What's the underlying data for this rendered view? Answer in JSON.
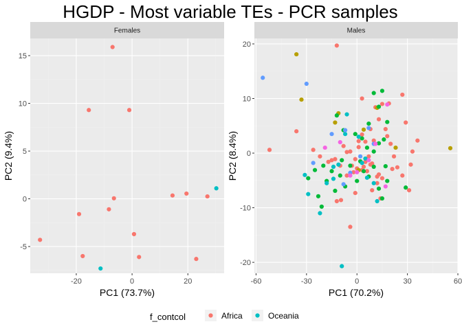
{
  "title": "HGDP - Most variable TEs - PCR samples",
  "colors": {
    "panel_bg": "#ebebeb",
    "strip_bg": "#d9d9d9",
    "legend_key_bg": "#f2f2f2"
  },
  "legend": {
    "title": "f_contcol",
    "position": "bottom",
    "entries": [
      {
        "label": "Africa",
        "color": "#F8766D"
      },
      {
        "label": "Oceania",
        "color": "#00BFC4"
      }
    ]
  },
  "chart_data": [
    {
      "type": "scatter",
      "facet": "Females",
      "xlabel": "PC1 (73.7%)",
      "ylabel": "PC2 (9.4%)",
      "xlim": [
        -36.5,
        33
      ],
      "ylim": [
        -7.8,
        16.8
      ],
      "xticks": [
        -20,
        0,
        20
      ],
      "yticks": [
        -5,
        0,
        5,
        10,
        15
      ],
      "grid": true,
      "series": [
        {
          "name": "Africa",
          "color": "#F8766D",
          "points": [
            [
              -7,
              15.9
            ],
            [
              -1,
              9.3
            ],
            [
              -15.5,
              9.3
            ],
            [
              -6.5,
              0.05
            ],
            [
              -8.3,
              -1.1
            ],
            [
              -19,
              -1.6
            ],
            [
              -33,
              -4.3
            ],
            [
              -17.7,
              -6
            ],
            [
              0.7,
              -3.7
            ],
            [
              2.5,
              -6.1
            ],
            [
              14.5,
              0.35
            ],
            [
              19.5,
              0.55
            ],
            [
              27,
              0.25
            ],
            [
              23,
              -6.3
            ]
          ]
        },
        {
          "name": "Oceania",
          "color": "#00BFC4",
          "points": [
            [
              30.2,
              1.1
            ],
            [
              -11.3,
              -7.3
            ]
          ]
        }
      ]
    },
    {
      "type": "scatter",
      "facet": "Males",
      "xlabel": "PC1 (70.2%)",
      "ylabel": "PC2 (8.4%)",
      "xlim": [
        -61,
        60
      ],
      "ylim": [
        -22,
        21
      ],
      "xticks": [
        -60,
        -30,
        0,
        30,
        60
      ],
      "yticks": [
        -20,
        -10,
        0,
        10,
        20
      ],
      "grid": true,
      "series": [
        {
          "name": "",
          "color": "#F8766D",
          "points": [
            [
              -12,
              19.7
            ],
            [
              -36,
              4
            ],
            [
              -52,
              0.6
            ],
            [
              -26,
              0.6
            ],
            [
              -22,
              -0.6
            ],
            [
              -15,
              -1.3
            ],
            [
              -8,
              1.3
            ],
            [
              -4,
              0.3
            ],
            [
              -10,
              -2.3
            ],
            [
              -6,
              -4.1
            ],
            [
              -9.5,
              -8.6
            ],
            [
              -12,
              -8.8
            ],
            [
              -4,
              -13.5
            ],
            [
              3,
              3.4
            ],
            [
              5,
              2.1
            ],
            [
              8,
              4.4
            ],
            [
              10,
              2.3
            ],
            [
              13,
              6.2
            ],
            [
              15,
              9
            ],
            [
              18,
              3.1
            ],
            [
              20,
              1.7
            ],
            [
              27,
              10.7
            ],
            [
              29,
              5.6
            ],
            [
              22,
              -0.6
            ],
            [
              24,
              -2.6
            ],
            [
              27,
              -4.1
            ],
            [
              32,
              -2.1
            ],
            [
              33,
              0.3
            ],
            [
              36,
              2.3
            ],
            [
              31,
              -6.8
            ],
            [
              15,
              -4.6
            ],
            [
              12,
              -5.5
            ],
            [
              9,
              -6.8
            ],
            [
              6,
              -3.3
            ],
            [
              3,
              -3.1
            ],
            [
              0,
              -2.8
            ],
            [
              -2,
              -3.5
            ],
            [
              5,
              -1.6
            ],
            [
              7,
              -0.6
            ],
            [
              9,
              -1.9
            ],
            [
              13,
              -3.9
            ],
            [
              14,
              -8.3
            ],
            [
              19,
              9.1
            ],
            [
              3,
              10
            ],
            [
              -1,
              -1.1
            ],
            [
              1,
              1.1
            ],
            [
              -6,
              0.2
            ],
            [
              -13,
              -1.1
            ],
            [
              -17,
              -1.6
            ],
            [
              -3,
              -2.3
            ],
            [
              11,
              8.4
            ],
            [
              17,
              4.4
            ],
            [
              -1,
              -7.3
            ],
            [
              1,
              2.2
            ],
            [
              4,
              -2.5
            ],
            [
              8,
              -2.1
            ],
            [
              12,
              -4.3
            ],
            [
              21,
              -2.9
            ]
          ]
        },
        {
          "name": "",
          "color": "#B79F00",
          "points": [
            [
              -36,
              18.1
            ],
            [
              -33,
              9.8
            ],
            [
              55.5,
              0.9
            ],
            [
              23,
              1
            ],
            [
              -11,
              7.3
            ],
            [
              -13,
              5.6
            ],
            [
              4,
              4.3
            ],
            [
              12,
              8.3
            ],
            [
              1,
              -3.1
            ]
          ]
        },
        {
          "name": "",
          "color": "#00BA38",
          "points": [
            [
              7,
              5.4
            ],
            [
              10,
              11
            ],
            [
              15,
              11.4
            ],
            [
              13,
              8.5
            ],
            [
              18,
              5.7
            ],
            [
              16,
              2.5
            ],
            [
              13,
              1.8
            ],
            [
              10,
              0.3
            ],
            [
              6,
              1
            ],
            [
              3,
              2.7
            ],
            [
              -1,
              3.5
            ],
            [
              -8,
              4.2
            ],
            [
              -12,
              6.9
            ],
            [
              -20,
              -2.3
            ],
            [
              -15,
              -3.3
            ],
            [
              -10,
              -4.1
            ],
            [
              -7,
              -6.1
            ],
            [
              -13,
              -6.9
            ],
            [
              -18,
              -5.1
            ],
            [
              -21,
              -9.8
            ],
            [
              -23,
              -7.9
            ],
            [
              -29,
              -4.6
            ],
            [
              -25,
              -3.1
            ],
            [
              0,
              -5.1
            ],
            [
              4,
              -3.3
            ],
            [
              7,
              -4.3
            ],
            [
              15,
              -8.3
            ],
            [
              18,
              -5.1
            ],
            [
              13,
              -6.5
            ],
            [
              29,
              -6.3
            ],
            [
              17,
              -2.4
            ],
            [
              10,
              -2.5
            ],
            [
              2,
              -1.5
            ],
            [
              -4,
              -2.3
            ],
            [
              -9,
              -1.3
            ]
          ]
        },
        {
          "name": "",
          "color": "#00BFC4",
          "points": [
            [
              -31,
              -4
            ],
            [
              -29,
              -7.5
            ],
            [
              -22,
              -11
            ],
            [
              -18,
              -5.5
            ],
            [
              -14,
              -2.5
            ],
            [
              -9,
              -20.7
            ],
            [
              -6,
              7.1
            ],
            [
              -7,
              3.5
            ],
            [
              1,
              3
            ],
            [
              3,
              -1.8
            ],
            [
              6,
              -4.5
            ],
            [
              10,
              -5.5
            ],
            [
              12,
              -8.8
            ],
            [
              5,
              -1
            ],
            [
              -11,
              -2.1
            ],
            [
              -14,
              -4.7
            ]
          ]
        },
        {
          "name": "",
          "color": "#619CFF",
          "points": [
            [
              -56,
              13.8
            ],
            [
              -30,
              12.7
            ],
            [
              -26,
              -1.8
            ],
            [
              -15,
              3.5
            ],
            [
              -7,
              4.2
            ],
            [
              7,
              4.6
            ],
            [
              10,
              1.7
            ],
            [
              -4,
              -3.6
            ],
            [
              -8,
              -5.7
            ],
            [
              2,
              -0.6
            ]
          ]
        },
        {
          "name": "",
          "color": "#F564E3",
          "points": [
            [
              -10,
              2
            ],
            [
              -19,
              1
            ],
            [
              18,
              8.9
            ],
            [
              17,
              -6.1
            ],
            [
              -4,
              -4.1
            ],
            [
              11,
              1.7
            ],
            [
              0,
              -3.5
            ],
            [
              7,
              -1.3
            ]
          ]
        }
      ]
    }
  ]
}
